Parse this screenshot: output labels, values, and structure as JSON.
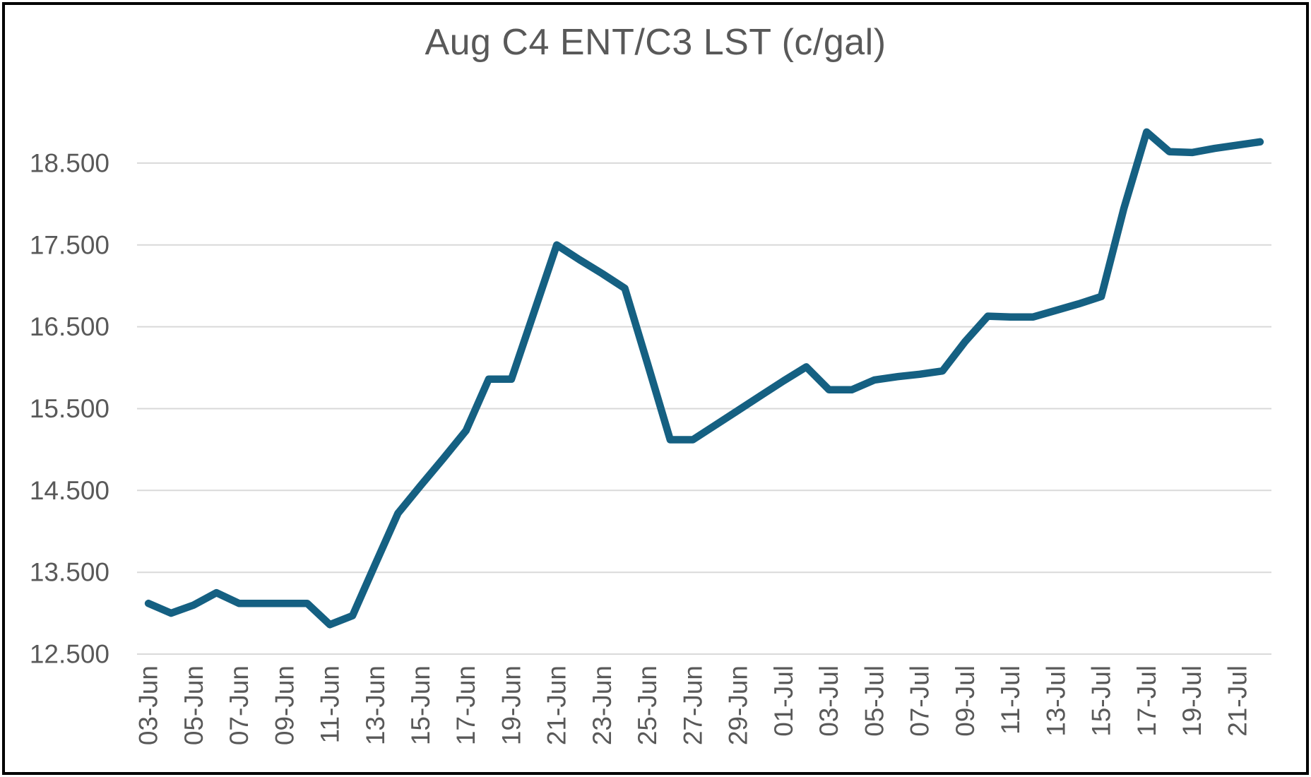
{
  "frame": {
    "border_color": "#000000"
  },
  "chart_data": {
    "type": "line",
    "title": "Aug C4 ENT/C3 LST (c/gal)",
    "x": [
      "03-Jun",
      "04-Jun",
      "05-Jun",
      "06-Jun",
      "07-Jun",
      "08-Jun",
      "09-Jun",
      "10-Jun",
      "11-Jun",
      "12-Jun",
      "13-Jun",
      "14-Jun",
      "15-Jun",
      "16-Jun",
      "17-Jun",
      "18-Jun",
      "19-Jun",
      "20-Jun",
      "21-Jun",
      "22-Jun",
      "23-Jun",
      "24-Jun",
      "25-Jun",
      "26-Jun",
      "27-Jun",
      "28-Jun",
      "29-Jun",
      "30-Jun",
      "01-Jul",
      "02-Jul",
      "03-Jul",
      "04-Jul",
      "05-Jul",
      "06-Jul",
      "07-Jul",
      "08-Jul",
      "09-Jul",
      "10-Jul",
      "11-Jul",
      "12-Jul",
      "13-Jul",
      "14-Jul",
      "15-Jul",
      "16-Jul",
      "17-Jul",
      "18-Jul",
      "19-Jul",
      "20-Jul",
      "21-Jul",
      "22-Jul"
    ],
    "values": [
      13.12,
      13.0,
      13.1,
      13.25,
      13.12,
      13.12,
      13.12,
      13.12,
      12.86,
      12.97,
      13.6,
      14.22,
      14.56,
      14.89,
      15.23,
      15.86,
      15.86,
      16.68,
      17.5,
      17.32,
      17.15,
      16.97,
      16.05,
      15.12,
      15.12,
      15.3,
      15.48,
      15.66,
      15.84,
      16.01,
      15.73,
      15.73,
      15.85,
      15.89,
      15.92,
      15.96,
      16.32,
      16.63,
      16.62,
      16.62,
      16.7,
      16.78,
      16.87,
      17.95,
      18.88,
      18.64,
      18.63,
      18.68,
      18.72,
      18.76
    ],
    "x_tick_labels": [
      "03-Jun",
      "05-Jun",
      "07-Jun",
      "09-Jun",
      "11-Jun",
      "13-Jun",
      "15-Jun",
      "17-Jun",
      "19-Jun",
      "21-Jun",
      "23-Jun",
      "25-Jun",
      "27-Jun",
      "29-Jun",
      "01-Jul",
      "03-Jul",
      "05-Jul",
      "07-Jul",
      "09-Jul",
      "11-Jul",
      "13-Jul",
      "15-Jul",
      "17-Jul",
      "19-Jul",
      "21-Jul"
    ],
    "x_tick_every": 2,
    "y_ticks": [
      12.5,
      13.5,
      14.5,
      15.5,
      16.5,
      17.5,
      18.5
    ],
    "y_tick_labels": [
      "12.500",
      "13.500",
      "14.500",
      "15.500",
      "16.500",
      "17.500",
      "18.500"
    ],
    "ylim": [
      12.5,
      19.0
    ],
    "xlabel": "",
    "ylabel": "",
    "grid": "horizontal",
    "legend": "none",
    "colors": {
      "line": "#156082",
      "grid": "#D9D9D9",
      "tick_text": "#595959",
      "title_text": "#595959",
      "background": "#FFFFFF"
    }
  }
}
